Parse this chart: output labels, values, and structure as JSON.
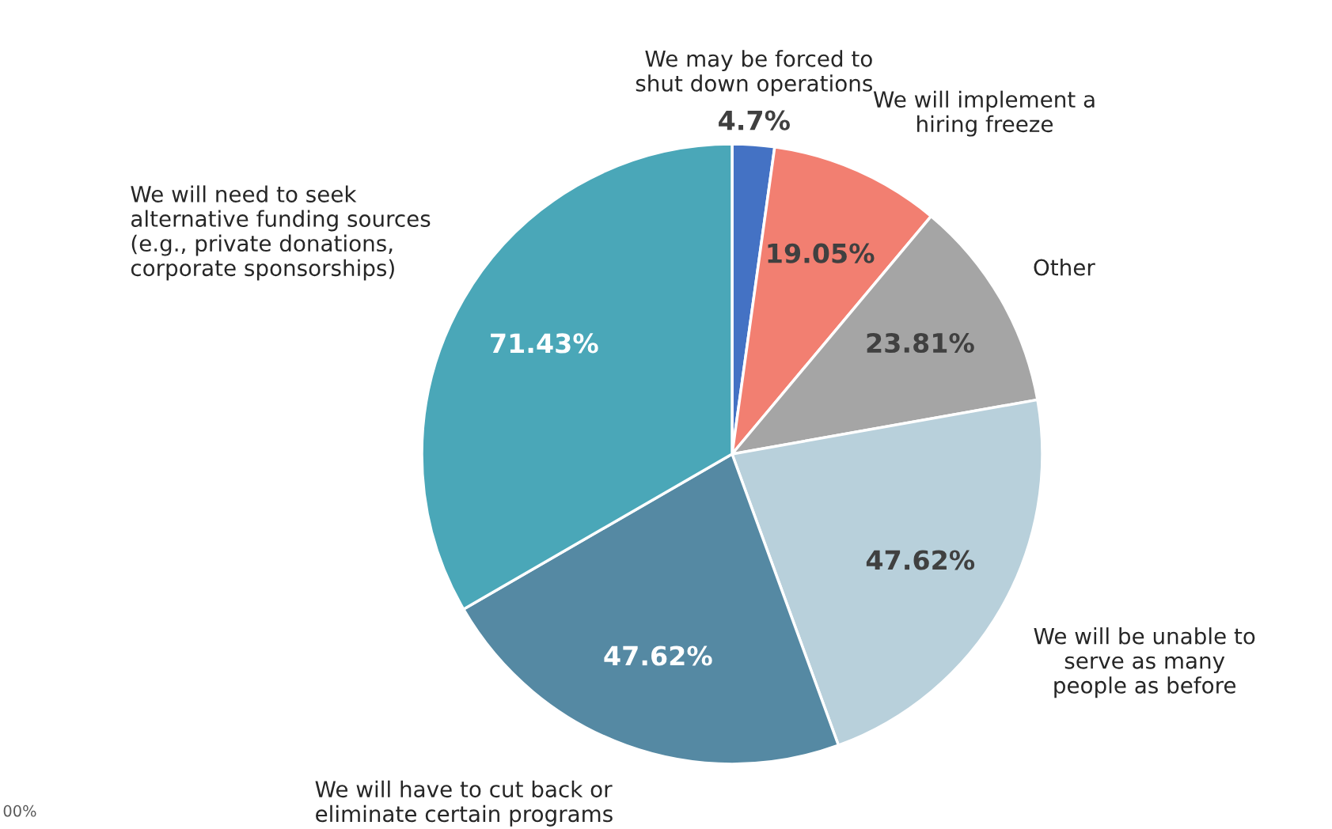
{
  "chart_data": {
    "type": "pie",
    "categories": [
      "We may be forced to\nshut down operations",
      "We will implement a\nhiring freeze",
      "Other",
      "We will be unable to\nserve as many\npeople as before",
      "We will have to cut back or\neliminate certain programs",
      "We will need to seek\nalternative funding sources\n(e.g., private donations,\ncorporate sponsorships)"
    ],
    "values": [
      4.7,
      19.05,
      23.81,
      47.62,
      47.62,
      71.43
    ],
    "colors": [
      "#4472c4",
      "#f27f71",
      "#a5a5a5",
      "#b8d0db",
      "#5589a3",
      "#4aa7b8"
    ],
    "value_labels": [
      "4.7%",
      "19.05%",
      "23.81%",
      "47.62%",
      "47.62%",
      "71.43%"
    ],
    "annotations": [
      "00%"
    ]
  }
}
